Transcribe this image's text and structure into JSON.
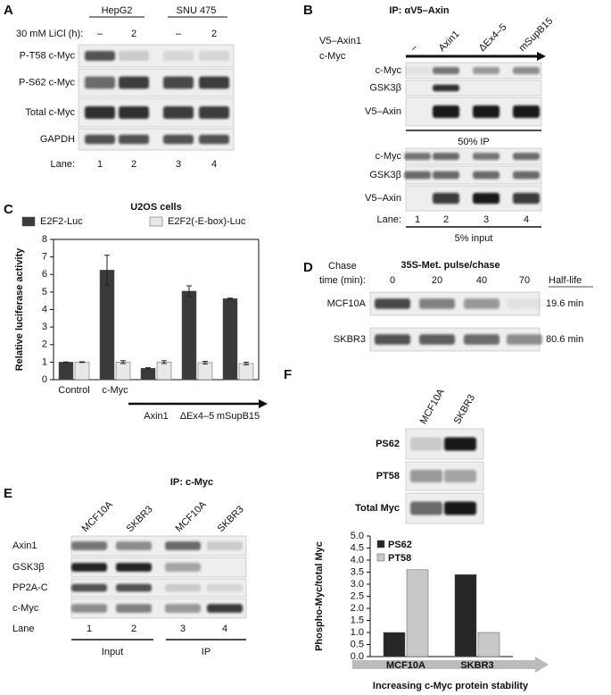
{
  "panels": {
    "A": {
      "label": "A",
      "cell_lines": [
        "HepG2",
        "SNU 475"
      ],
      "treatment": "30 mM LiCl (h):",
      "conditions": [
        "–",
        "2",
        "–",
        "2"
      ],
      "rows": [
        "P-T58 c-Myc",
        "P-S62 c-Myc",
        "Total c-Myc",
        "GAPDH"
      ],
      "lane_label": "Lane:",
      "lanes": [
        "1",
        "2",
        "3",
        "4"
      ]
    },
    "B": {
      "label": "B",
      "title": "IP: αV5–Axin",
      "construct": "V5–Axin1",
      "construct_cotransfected": "c-Myc",
      "columns": [
        "–",
        "Axin1",
        "ΔEx4–5",
        "mSupB15"
      ],
      "ip_rows": [
        "c-Myc",
        "GSK3β",
        "V5–Axin"
      ],
      "ip_caption": "50% IP",
      "input_rows": [
        "c-Myc",
        "GSK3β",
        "V5–Axin"
      ],
      "lane_label": "Lane:",
      "lanes": [
        "1",
        "2",
        "3",
        "4"
      ],
      "input_caption": "5% input"
    },
    "D": {
      "label": "D",
      "chase_label": [
        "Chase",
        "time (min):"
      ],
      "title": "35S-Met. pulse/chase",
      "times": [
        "0",
        "20",
        "40",
        "70"
      ],
      "half_life_header": "Half-life",
      "rows": [
        {
          "name": "MCF10A",
          "half_life": "19.6 min"
        },
        {
          "name": "SKBR3",
          "half_life": "80.6 min"
        }
      ]
    },
    "E": {
      "label": "E",
      "title": "IP: c-Myc",
      "columns": [
        "MCF10A",
        "SKBR3",
        "MCF10A",
        "SKBR3"
      ],
      "rows": [
        "Axin1",
        "GSK3β",
        "PP2A-C",
        "c-Myc"
      ],
      "lane_label": "Lane",
      "lanes": [
        "1",
        "2",
        "3",
        "4"
      ],
      "groups": [
        "Input",
        "IP"
      ]
    },
    "F": {
      "label": "F",
      "columns": [
        "MCF10A",
        "SKBR3"
      ],
      "rows": [
        "PS62",
        "PT58",
        "Total Myc"
      ]
    }
  },
  "chart_data": [
    {
      "type": "bar",
      "panel_label": "C",
      "title": "U2OS cells",
      "ylabel": "Relative luciferase activity",
      "categories": [
        "Control",
        "c-Myc",
        "Axin1",
        "ΔEx4–5",
        "mSupB15"
      ],
      "series": [
        {
          "name": "E2F2-Luc",
          "color": "#3a3a3a",
          "values": [
            1,
            6.25,
            0.65,
            5.05,
            4.62
          ],
          "errors": [
            0.01,
            0.85,
            0.03,
            0.3,
            0.03
          ]
        },
        {
          "name": "E2F2(-E-box)-Luc",
          "color": "#e8e8e8",
          "values": [
            1,
            1,
            1,
            0.97,
            0.92
          ],
          "errors": [
            0.02,
            0.08,
            0.08,
            0.07,
            0.07
          ]
        }
      ],
      "ylim": [
        0,
        8
      ],
      "yticks": [
        0,
        1,
        2,
        3,
        4,
        5,
        6,
        7,
        8
      ],
      "legend": "top"
    },
    {
      "type": "bar",
      "ylabel": "Phospho-Myc/total Myc",
      "xlabel": "Increasing c-Myc protein stability",
      "categories": [
        "MCF10A",
        "SKBR3"
      ],
      "series": [
        {
          "name": "PS62",
          "color": "#262626",
          "values": [
            1,
            3.4
          ]
        },
        {
          "name": "PT58",
          "color": "#c8c8c8",
          "values": [
            3.6,
            1
          ]
        }
      ],
      "ylim": [
        0,
        5
      ],
      "yticks": [
        {
          "value": 0,
          "label": "0.0"
        },
        0.5,
        {
          "value": 1,
          "label": "1.0"
        },
        1.5,
        {
          "value": 2,
          "label": "2.0"
        },
        2.5,
        {
          "value": 3,
          "label": "3.0"
        },
        3.5,
        {
          "value": 4,
          "label": "4.0"
        },
        4.5,
        {
          "value": 5,
          "label": "5.0"
        }
      ],
      "legend": "top-left"
    }
  ]
}
